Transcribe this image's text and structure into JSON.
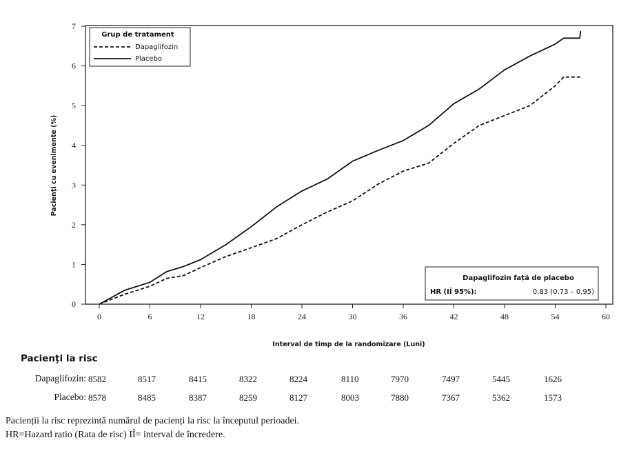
{
  "chart_data": {
    "type": "line",
    "title": "",
    "xlabel": "Interval de timp de la randomizare (Luni)",
    "ylabel": "Pacienți cu evenimente (%)",
    "xlim": [
      0,
      60
    ],
    "ylim": [
      0,
      7
    ],
    "x_ticks": [
      "0",
      "6",
      "12",
      "18",
      "24",
      "30",
      "36",
      "42",
      "48",
      "54",
      "60"
    ],
    "y_ticks": [
      "0",
      "1",
      "2",
      "3",
      "4",
      "5",
      "6",
      "7"
    ],
    "grid": false,
    "legend": {
      "title": "Grup de tratament",
      "placement": "top-left",
      "items": [
        "Dapaglifozin",
        "Placebo"
      ]
    },
    "series": [
      {
        "name": "Dapaglifozin",
        "style": "dashed",
        "x": [
          0,
          3,
          6,
          8,
          10,
          12,
          15,
          18,
          21,
          24,
          27,
          30,
          33,
          36,
          39,
          42,
          45,
          48,
          51,
          54,
          55,
          57
        ],
        "y": [
          0,
          0.25,
          0.45,
          0.65,
          0.72,
          0.92,
          1.2,
          1.42,
          1.65,
          2.0,
          2.32,
          2.6,
          3.02,
          3.35,
          3.55,
          4.05,
          4.5,
          4.75,
          5.0,
          5.5,
          5.72,
          5.72
        ]
      },
      {
        "name": "Placebo",
        "style": "solid",
        "x": [
          0,
          3,
          6,
          8,
          10,
          12,
          15,
          18,
          21,
          24,
          27,
          30,
          33,
          36,
          39,
          42,
          45,
          48,
          51,
          54,
          55,
          56.9,
          57
        ],
        "y": [
          0,
          0.35,
          0.55,
          0.82,
          0.95,
          1.12,
          1.5,
          1.95,
          2.45,
          2.85,
          3.15,
          3.6,
          3.87,
          4.12,
          4.5,
          5.05,
          5.42,
          5.9,
          6.25,
          6.55,
          6.7,
          6.7,
          6.88
        ]
      }
    ],
    "hr_box": {
      "placement": "bottom-right",
      "title": "Dapaglifozin față de placebo",
      "label": "HR (IÎ 95%):",
      "value": "0,83 (0,73 – 0,95)"
    }
  },
  "risk_table": {
    "title": "Pacienți la risc",
    "rows": [
      {
        "label": "Dapaglifozin:",
        "values": [
          "8582",
          "8517",
          "8415",
          "8322",
          "8224",
          "8110",
          "7970",
          "7497",
          "5445",
          "1626"
        ]
      },
      {
        "label": "Placebo:",
        "values": [
          "8578",
          "8485",
          "8387",
          "8259",
          "8127",
          "8003",
          "7880",
          "7367",
          "5362",
          "1573"
        ]
      }
    ]
  },
  "notes": {
    "line1": "Pacienții la risc reprezintă numărul de pacienți la risc la începutul perioadei.",
    "line2": "HR=Hazard ratio (Rata de risc) IÎ= interval de încredere."
  },
  "colors": {
    "line": "#111111",
    "axis": "#222222"
  }
}
